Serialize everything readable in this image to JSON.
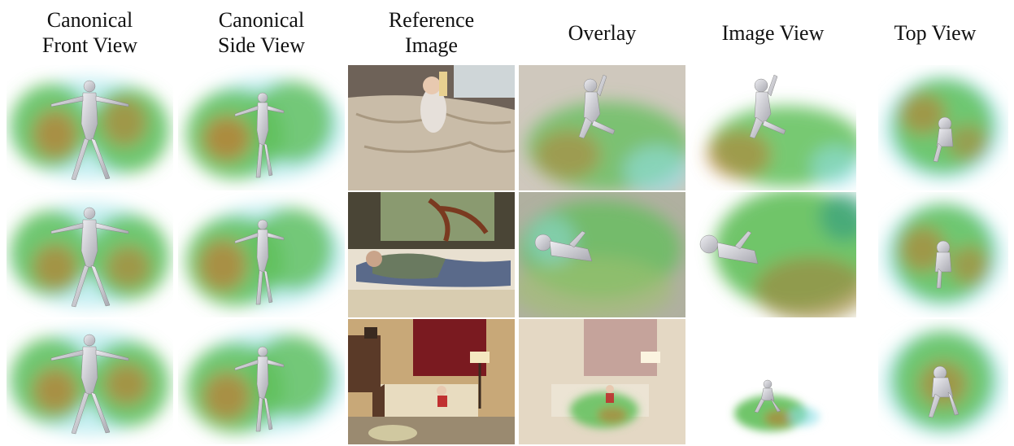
{
  "columns": [
    {
      "key": "front",
      "label": "Canonical\nFront View"
    },
    {
      "key": "side",
      "label": "Canonical\nSide View"
    },
    {
      "key": "reference",
      "label": "Reference\nImage"
    },
    {
      "key": "overlay",
      "label": "Overlay"
    },
    {
      "key": "imageview",
      "label": "Image View"
    },
    {
      "key": "top",
      "label": "Top View"
    }
  ],
  "rows": [
    {
      "scene": "baby sitting on a bed"
    },
    {
      "scene": "man lying on a bed"
    },
    {
      "scene": "child sitting on a bed in a bedroom"
    }
  ],
  "palette": {
    "volume_green": "#5fbf5a",
    "volume_orange": "#c07830",
    "volume_cyan": "#8fe0e8",
    "body_gray": "#d4d4d8"
  }
}
